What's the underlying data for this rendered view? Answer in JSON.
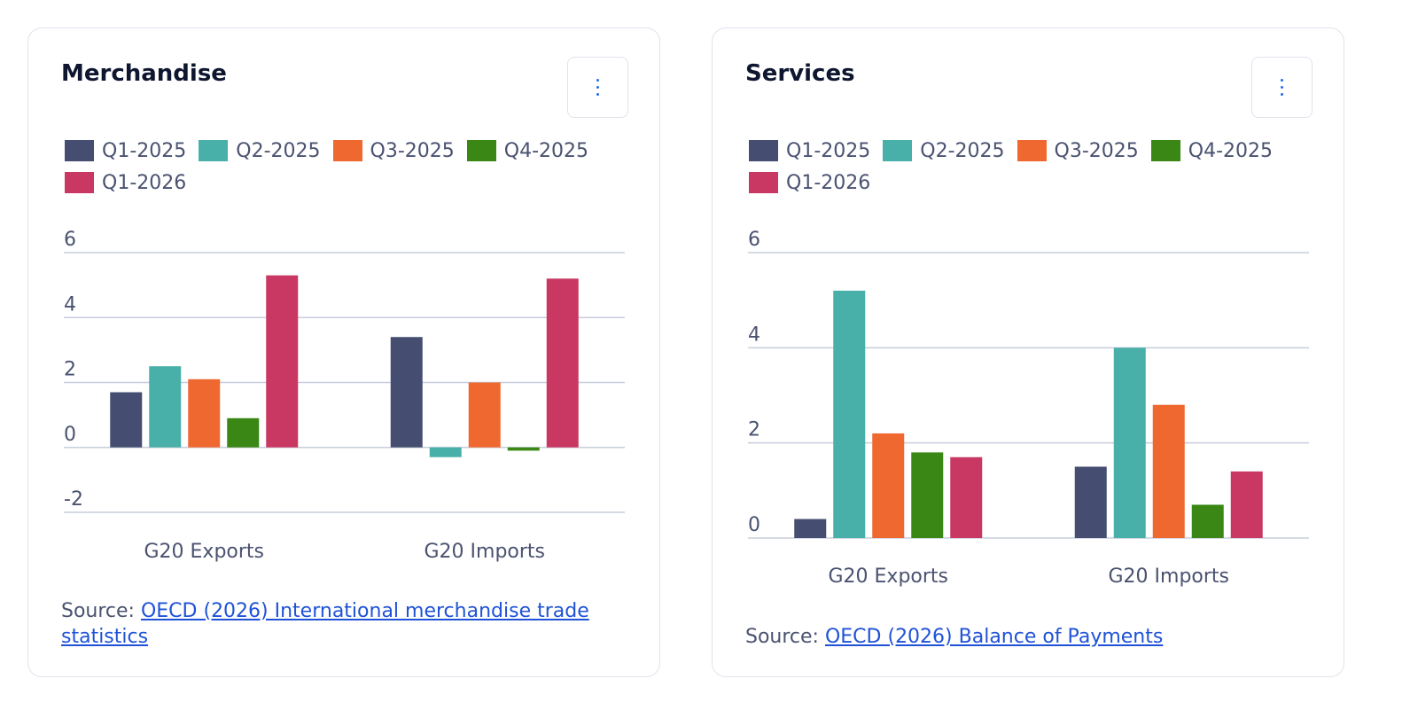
{
  "colors": {
    "Q1-2025": "#454e70",
    "Q2-2025": "#48afa9",
    "Q3-2025": "#ef6830",
    "Q4-2025": "#3a8716",
    "Q1-2026": "#c83862",
    "grid": "#c7cedb"
  },
  "cards": [
    {
      "title": "Merchandise",
      "source_prefix": "Source: ",
      "source_link": "OECD (2026) International merchandise trade statistics",
      "chart_data": {
        "type": "bar",
        "title": "Merchandise",
        "categories": [
          "G20 Exports",
          "G20 Imports"
        ],
        "series": [
          {
            "name": "Q1-2025",
            "values": [
              1.7,
              3.4
            ]
          },
          {
            "name": "Q2-2025",
            "values": [
              2.5,
              -0.3
            ]
          },
          {
            "name": "Q3-2025",
            "values": [
              2.1,
              2.0
            ]
          },
          {
            "name": "Q4-2025",
            "values": [
              0.9,
              -0.1
            ]
          },
          {
            "name": "Q1-2026",
            "values": [
              5.3,
              5.2
            ]
          }
        ],
        "ylim": [
          -2,
          6
        ],
        "yticks": [
          -2,
          0,
          2,
          4,
          6
        ],
        "grid": true,
        "legend": "top"
      }
    },
    {
      "title": "Services",
      "source_prefix": "Source: ",
      "source_link": "OECD (2026) Balance of Payments",
      "chart_data": {
        "type": "bar",
        "title": "Services",
        "categories": [
          "G20 Exports",
          "G20 Imports"
        ],
        "series": [
          {
            "name": "Q1-2025",
            "values": [
              0.4,
              1.5
            ]
          },
          {
            "name": "Q2-2025",
            "values": [
              5.2,
              4.0
            ]
          },
          {
            "name": "Q3-2025",
            "values": [
              2.2,
              2.8
            ]
          },
          {
            "name": "Q4-2025",
            "values": [
              1.8,
              0.7
            ]
          },
          {
            "name": "Q1-2026",
            "values": [
              1.7,
              1.4
            ]
          }
        ],
        "ylim": [
          0,
          6
        ],
        "yticks": [
          0,
          2,
          4,
          6
        ],
        "grid": true,
        "legend": "top"
      }
    }
  ]
}
